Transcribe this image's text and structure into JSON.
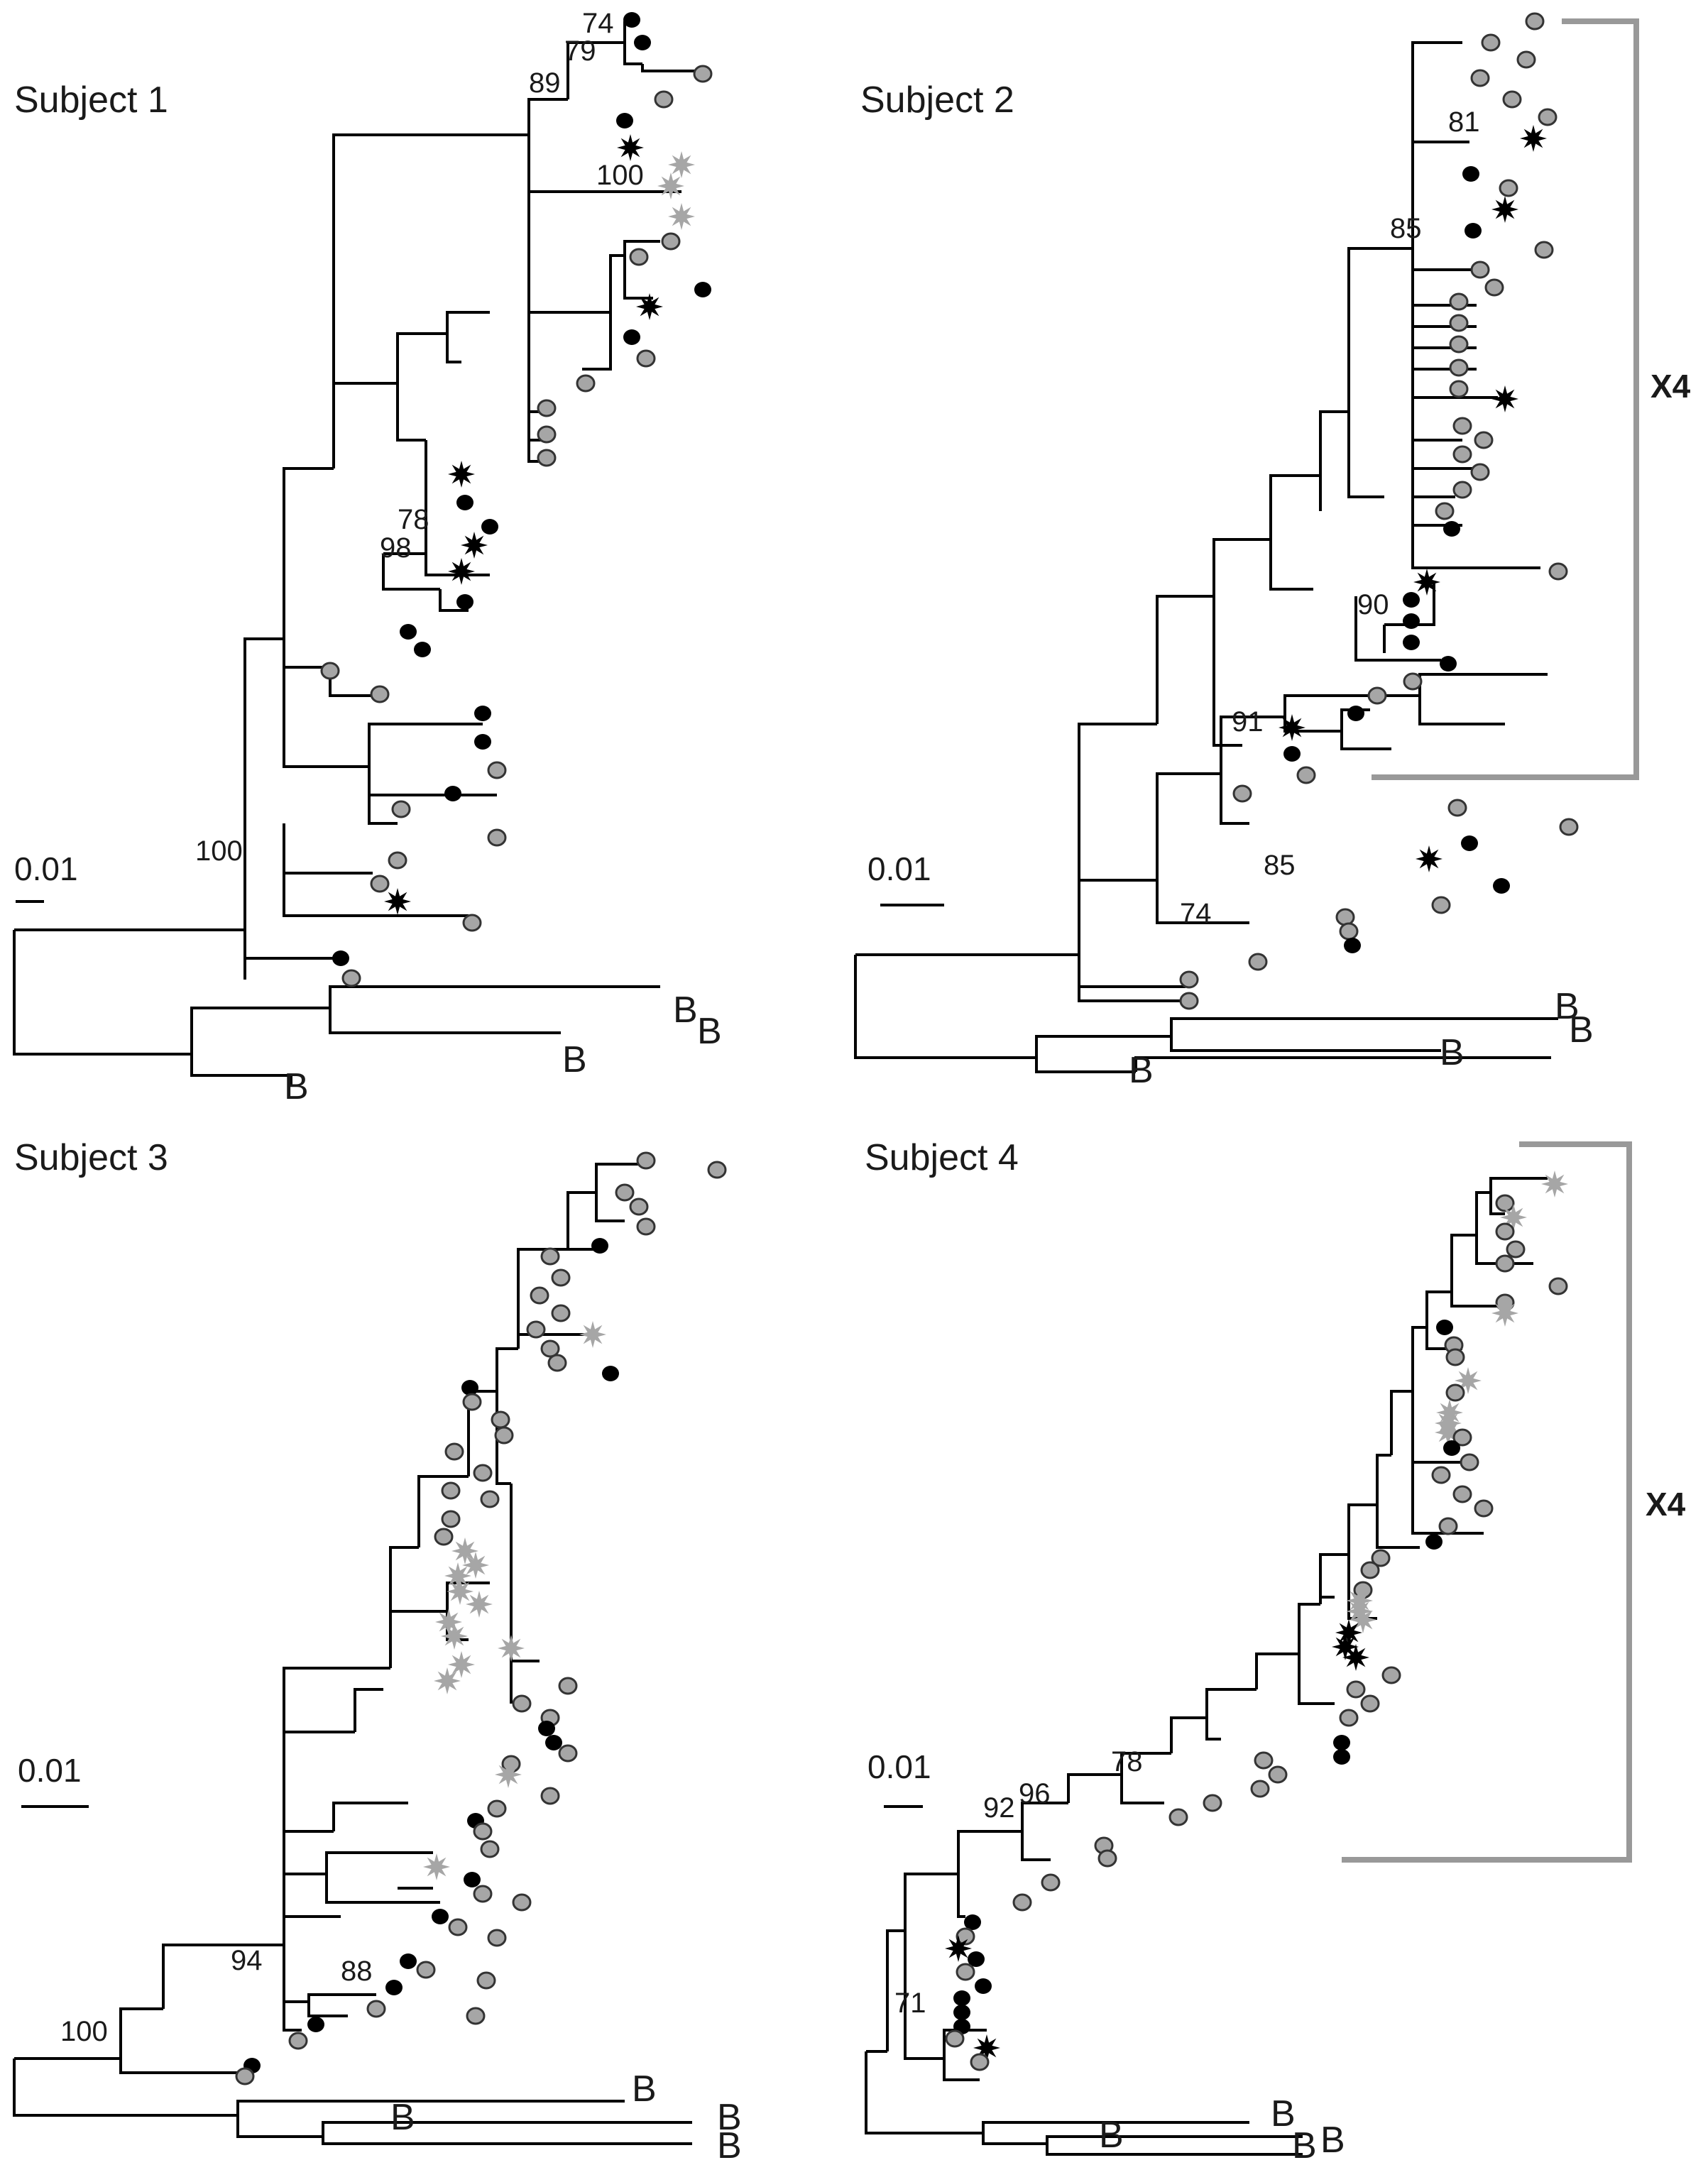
{
  "figure": {
    "colors": {
      "branch": "#000000",
      "black_marker": "#000000",
      "gray_marker": "#a6a6a6",
      "gray_marker_stroke": "#333333",
      "bracket": "#999999",
      "text": "#1a1a1a"
    },
    "legend_note": "Leaf marker types: black-circle, gray-circle, black-star, gray-star",
    "panels": [
      {
        "title": "Subject 1",
        "scale_label": "0.01",
        "bootstrap_values": [
          "74",
          "79",
          "89",
          "100",
          "78",
          "98",
          "100"
        ],
        "outgroup_labels": [
          "B",
          "B",
          "B",
          "B"
        ],
        "bracket_label": ""
      },
      {
        "title": "Subject 2",
        "scale_label": "0.01",
        "bootstrap_values": [
          "81",
          "85",
          "90",
          "91",
          "85",
          "74"
        ],
        "outgroup_labels": [
          "B",
          "B",
          "B",
          "B"
        ],
        "bracket_label": "X4"
      },
      {
        "title": "Subject 3",
        "scale_label": "0.01",
        "bootstrap_values": [
          "94",
          "88",
          "100"
        ],
        "outgroup_labels": [
          "B",
          "B",
          "B",
          "B"
        ],
        "bracket_label": ""
      },
      {
        "title": "Subject 4",
        "scale_label": "0.01",
        "bootstrap_values": [
          "78",
          "92",
          "96",
          "71"
        ],
        "outgroup_labels": [
          "B",
          "B",
          "B",
          "B"
        ],
        "bracket_label": "X4"
      }
    ]
  }
}
